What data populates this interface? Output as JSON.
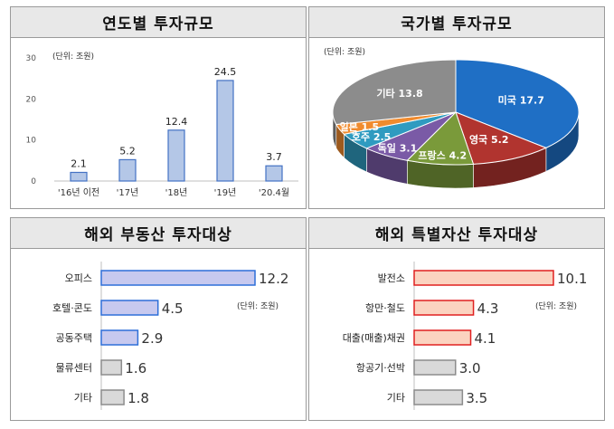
{
  "panels": {
    "p1": {
      "title": "연도별 투자규모",
      "unit": "(단위: 조원)"
    },
    "p2": {
      "title": "국가별 투자규모",
      "unit": "(단위: 조원)"
    },
    "p3": {
      "title": "해외 부동산 투자대상",
      "unit": "(단위: 조원)"
    },
    "p4": {
      "title": "해외 특별자산 투자대상",
      "unit": "(단위: 조원)"
    }
  },
  "chart_data": [
    {
      "type": "bar",
      "title": "연도별 투자규모",
      "categories": [
        "'16년 이전",
        "'17년",
        "'18년",
        "'19년",
        "'20.4월"
      ],
      "values": [
        2.1,
        5.2,
        12.4,
        24.5,
        3.7
      ],
      "value_labels": [
        "2.1",
        "5.2",
        "12.4",
        "24.5",
        "3.7"
      ],
      "yticks": [
        0,
        10,
        20,
        30
      ],
      "ylim": [
        0,
        30
      ],
      "grid": false,
      "color": "#b4c7e7",
      "edge_color": "#4472c4"
    },
    {
      "type": "pie",
      "title": "국가별 투자규모",
      "labels": [
        "미국",
        "영국",
        "프랑스",
        "독일",
        "호주",
        "일본",
        "기타"
      ],
      "values": [
        17.7,
        5.2,
        4.2,
        3.1,
        2.5,
        1.5,
        13.8
      ],
      "value_labels": [
        "17.7",
        "5.2",
        "4.2",
        "3.1",
        "2.5",
        "1.5",
        "13.8"
      ],
      "colors": [
        "#1f6fc5",
        "#b1342f",
        "#7a9a3a",
        "#7a5aa6",
        "#2f9bc0",
        "#f08b2e",
        "#8c8c8c"
      ]
    },
    {
      "type": "bar",
      "orientation": "horizontal",
      "title": "해외 부동산 투자대상",
      "categories": [
        "오피스",
        "호텔·콘도",
        "공동주택",
        "물류센터",
        "기타"
      ],
      "values": [
        12.2,
        4.5,
        2.9,
        1.6,
        1.8
      ],
      "value_labels": [
        "12.2",
        "4.5",
        "2.9",
        "1.6",
        "1.8"
      ],
      "fill_colors": [
        "#c7c9ef",
        "#c7c9ef",
        "#c7c9ef",
        "#d9d9d9",
        "#d9d9d9"
      ],
      "edge_colors": [
        "#2e6fd8",
        "#2e6fd8",
        "#2e6fd8",
        "#8c8c8c",
        "#8c8c8c"
      ]
    },
    {
      "type": "bar",
      "orientation": "horizontal",
      "title": "해외 특별자산 투자대상",
      "categories": [
        "발전소",
        "항만·철도",
        "대출(매출)채권",
        "항공기·선박",
        "기타"
      ],
      "values": [
        10.1,
        4.3,
        4.1,
        3.0,
        3.5
      ],
      "value_labels": [
        "10.1",
        "4.3",
        "4.1",
        "3.0",
        "3.5"
      ],
      "fill_colors": [
        "#fbd3c0",
        "#fbd3c0",
        "#fbd3c0",
        "#d9d9d9",
        "#d9d9d9"
      ],
      "edge_colors": [
        "#e02020",
        "#e02020",
        "#e02020",
        "#8c8c8c",
        "#8c8c8c"
      ]
    }
  ]
}
